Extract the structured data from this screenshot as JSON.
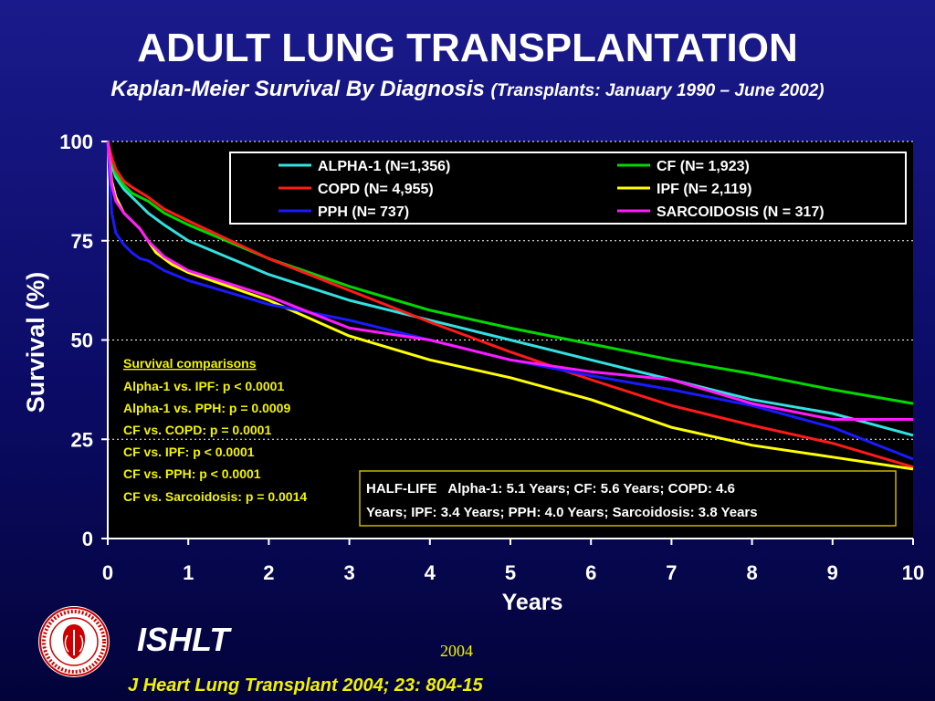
{
  "title": "ADULT LUNG TRANSPLANTATION",
  "subtitle_main": "Kaplan-Meier Survival By Diagnosis",
  "subtitle_range": "(Transplants: January 1990 – June 2002)",
  "org": "ISHLT",
  "year": "2004",
  "citation": "J Heart Lung Transplant 2004; 23: 804-15",
  "colors": {
    "background": "#0b0b66",
    "plot_bg": "#000000",
    "accent_yellow": "#f2f200"
  },
  "comparisons": {
    "heading": "Survival comparisons",
    "items": [
      "Alpha-1 vs. IPF: p < 0.0001",
      "Alpha-1 vs. PPH: p = 0.0009",
      "CF vs. COPD: p = 0.0001",
      "CF vs. IPF: p < 0.0001",
      "CF vs. PPH: p < 0.0001",
      "CF vs. Sarcoidosis: p = 0.0014"
    ]
  },
  "halflife": {
    "line1": "HALF-LIFE   Alpha-1: 5.1 Years; CF: 5.6 Years; COPD: 4.6",
    "line2": "Years; IPF: 3.4 Years; PPH: 4.0 Years; Sarcoidosis: 3.8 Years"
  },
  "chart_data": {
    "type": "line",
    "title": "ADULT LUNG TRANSPLANTATION",
    "subtitle": "Kaplan-Meier Survival By Diagnosis (Transplants: January 1990 – June 2002)",
    "xlabel": "Years",
    "ylabel": "Survival (%)",
    "xlim": [
      0,
      10
    ],
    "ylim": [
      0,
      100
    ],
    "xticks": [
      0,
      1,
      2,
      3,
      4,
      5,
      6,
      7,
      8,
      9,
      10
    ],
    "yticks": [
      0,
      25,
      50,
      75,
      100
    ],
    "grid": "horizontal dotted",
    "legend_position": "top-right",
    "series": [
      {
        "name": "ALPHA-1 (N=1,356)",
        "color": "#33e0e0",
        "points": [
          [
            0,
            100
          ],
          [
            0.05,
            94
          ],
          [
            0.1,
            91
          ],
          [
            0.2,
            88
          ],
          [
            0.3,
            86
          ],
          [
            0.4,
            84
          ],
          [
            0.5,
            82
          ],
          [
            0.7,
            79
          ],
          [
            1,
            75
          ],
          [
            2,
            66.5
          ],
          [
            3,
            60
          ],
          [
            4,
            55
          ],
          [
            5,
            50
          ],
          [
            6,
            45
          ],
          [
            7,
            40
          ],
          [
            8,
            35
          ],
          [
            9,
            31.5
          ],
          [
            10,
            26
          ]
        ]
      },
      {
        "name": "CF (N= 1,923)",
        "color": "#00d800",
        "points": [
          [
            0,
            100
          ],
          [
            0.05,
            95
          ],
          [
            0.1,
            92
          ],
          [
            0.2,
            89
          ],
          [
            0.3,
            87
          ],
          [
            0.5,
            85
          ],
          [
            0.7,
            82
          ],
          [
            1,
            79
          ],
          [
            2,
            70.5
          ],
          [
            3,
            63.5
          ],
          [
            4,
            57.5
          ],
          [
            5,
            53
          ],
          [
            6,
            49
          ],
          [
            7,
            45
          ],
          [
            8,
            41.5
          ],
          [
            9,
            37.5
          ],
          [
            10,
            34
          ]
        ]
      },
      {
        "name": "COPD (N= 4,955)",
        "color": "#ff1a1a",
        "points": [
          [
            0,
            100
          ],
          [
            0.05,
            96
          ],
          [
            0.1,
            93
          ],
          [
            0.2,
            90
          ],
          [
            0.3,
            88.5
          ],
          [
            0.5,
            86
          ],
          [
            0.7,
            83
          ],
          [
            1,
            80
          ],
          [
            2,
            70.5
          ],
          [
            3,
            62.5
          ],
          [
            4,
            54.5
          ],
          [
            5,
            47
          ],
          [
            6,
            40
          ],
          [
            7,
            33.5
          ],
          [
            8,
            28.5
          ],
          [
            9,
            24
          ],
          [
            10,
            18
          ]
        ]
      },
      {
        "name": "IPF (N= 2,119)",
        "color": "#ffff00",
        "points": [
          [
            0,
            100
          ],
          [
            0.05,
            90
          ],
          [
            0.1,
            86
          ],
          [
            0.2,
            82
          ],
          [
            0.4,
            78
          ],
          [
            0.6,
            72
          ],
          [
            0.8,
            69
          ],
          [
            1,
            67
          ],
          [
            2,
            60
          ],
          [
            3,
            51
          ],
          [
            4,
            45
          ],
          [
            5,
            40.5
          ],
          [
            6,
            35
          ],
          [
            7,
            28
          ],
          [
            8,
            23.5
          ],
          [
            9,
            20.5
          ],
          [
            10,
            17.5
          ]
        ]
      },
      {
        "name": "PPH (N= 737)",
        "color": "#1a1aff",
        "points": [
          [
            0,
            100
          ],
          [
            0.05,
            82
          ],
          [
            0.1,
            77
          ],
          [
            0.2,
            74
          ],
          [
            0.3,
            72
          ],
          [
            0.4,
            70.5
          ],
          [
            0.5,
            70
          ],
          [
            0.7,
            67.5
          ],
          [
            1,
            65
          ],
          [
            2,
            59
          ],
          [
            3,
            55
          ],
          [
            4,
            50
          ],
          [
            5,
            45
          ],
          [
            6,
            41
          ],
          [
            7,
            37.5
          ],
          [
            8,
            33.5
          ],
          [
            9,
            28
          ],
          [
            10,
            20
          ]
        ]
      },
      {
        "name": "SARCOIDOSIS (N = 317)",
        "color": "#ff1aff",
        "points": [
          [
            0,
            100
          ],
          [
            0.05,
            89
          ],
          [
            0.1,
            85
          ],
          [
            0.2,
            82
          ],
          [
            0.3,
            80
          ],
          [
            0.4,
            78
          ],
          [
            0.5,
            75
          ],
          [
            0.7,
            71
          ],
          [
            1,
            67.5
          ],
          [
            2,
            61
          ],
          [
            3,
            53
          ],
          [
            4,
            50
          ],
          [
            5,
            45
          ],
          [
            6,
            42
          ],
          [
            7,
            40
          ],
          [
            8,
            34
          ],
          [
            9,
            30
          ],
          [
            10,
            30
          ]
        ]
      }
    ]
  }
}
